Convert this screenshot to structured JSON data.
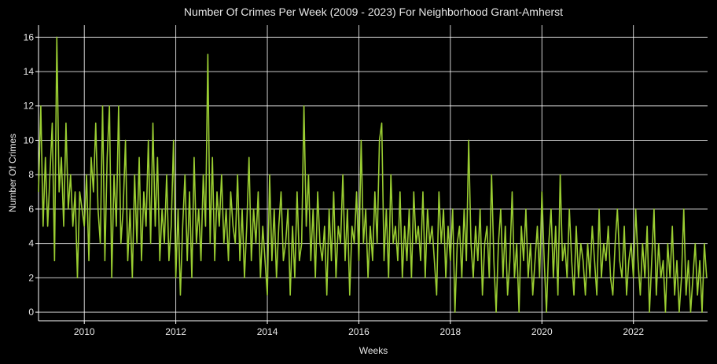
{
  "chart_data": {
    "type": "line",
    "title": "Number Of Crimes Per Week (2009 - 2023) For Neighborhood Grant-Amherst",
    "xlabel": "Weeks",
    "ylabel": "Number Of Crimes",
    "color": "#9acd32",
    "grid": true,
    "xlim": [
      2009,
      2023.62
    ],
    "ylim": [
      -0.5,
      16.7
    ],
    "xticks": [
      2010,
      2012,
      2014,
      2016,
      2018,
      2020,
      2022
    ],
    "yticks": [
      0,
      2,
      4,
      6,
      8,
      10,
      12,
      14,
      16
    ],
    "x": [
      2009,
      2009.05,
      2009.1,
      2009.15,
      2009.2,
      2009.25,
      2009.3,
      2009.35,
      2009.4,
      2009.45,
      2009.5,
      2009.55,
      2009.6,
      2009.65,
      2009.7,
      2009.75,
      2009.8,
      2009.85,
      2009.9,
      2009.95,
      2010,
      2010.05,
      2010.1,
      2010.15,
      2010.2,
      2010.25,
      2010.3,
      2010.35,
      2010.4,
      2010.45,
      2010.5,
      2010.55,
      2010.6,
      2010.65,
      2010.7,
      2010.75,
      2010.8,
      2010.85,
      2010.9,
      2010.95,
      2011,
      2011.05,
      2011.1,
      2011.15,
      2011.2,
      2011.25,
      2011.3,
      2011.35,
      2011.4,
      2011.45,
      2011.5,
      2011.55,
      2011.6,
      2011.65,
      2011.7,
      2011.75,
      2011.8,
      2011.85,
      2011.9,
      2011.95,
      2012,
      2012.05,
      2012.1,
      2012.15,
      2012.2,
      2012.25,
      2012.3,
      2012.35,
      2012.4,
      2012.45,
      2012.5,
      2012.55,
      2012.6,
      2012.65,
      2012.7,
      2012.75,
      2012.8,
      2012.85,
      2012.9,
      2012.95,
      2013,
      2013.05,
      2013.1,
      2013.15,
      2013.2,
      2013.25,
      2013.3,
      2013.35,
      2013.4,
      2013.45,
      2013.5,
      2013.55,
      2013.6,
      2013.65,
      2013.7,
      2013.75,
      2013.8,
      2013.85,
      2013.9,
      2013.95,
      2014,
      2014.05,
      2014.1,
      2014.15,
      2014.2,
      2014.25,
      2014.3,
      2014.35,
      2014.4,
      2014.45,
      2014.5,
      2014.55,
      2014.6,
      2014.65,
      2014.7,
      2014.75,
      2014.8,
      2014.85,
      2014.9,
      2014.95,
      2015,
      2015.05,
      2015.1,
      2015.15,
      2015.2,
      2015.25,
      2015.3,
      2015.35,
      2015.4,
      2015.45,
      2015.5,
      2015.55,
      2015.6,
      2015.65,
      2015.7,
      2015.75,
      2015.8,
      2015.85,
      2015.9,
      2015.95,
      2016,
      2016.05,
      2016.1,
      2016.15,
      2016.2,
      2016.25,
      2016.3,
      2016.35,
      2016.4,
      2016.45,
      2016.5,
      2016.55,
      2016.6,
      2016.65,
      2016.7,
      2016.75,
      2016.8,
      2016.85,
      2016.9,
      2016.95,
      2017,
      2017.05,
      2017.1,
      2017.15,
      2017.2,
      2017.25,
      2017.3,
      2017.35,
      2017.4,
      2017.45,
      2017.5,
      2017.55,
      2017.6,
      2017.65,
      2017.7,
      2017.75,
      2017.8,
      2017.85,
      2017.9,
      2017.95,
      2018,
      2018.05,
      2018.1,
      2018.15,
      2018.2,
      2018.25,
      2018.3,
      2018.35,
      2018.4,
      2018.45,
      2018.5,
      2018.55,
      2018.6,
      2018.65,
      2018.7,
      2018.75,
      2018.8,
      2018.85,
      2018.9,
      2018.95,
      2019,
      2019.05,
      2019.1,
      2019.15,
      2019.2,
      2019.25,
      2019.3,
      2019.35,
      2019.4,
      2019.45,
      2019.5,
      2019.55,
      2019.6,
      2019.65,
      2019.7,
      2019.75,
      2019.8,
      2019.85,
      2019.9,
      2019.95,
      2020,
      2020.05,
      2020.1,
      2020.15,
      2020.2,
      2020.25,
      2020.3,
      2020.35,
      2020.4,
      2020.45,
      2020.5,
      2020.55,
      2020.6,
      2020.65,
      2020.7,
      2020.75,
      2020.8,
      2020.85,
      2020.9,
      2020.95,
      2021,
      2021.05,
      2021.1,
      2021.15,
      2021.2,
      2021.25,
      2021.3,
      2021.35,
      2021.4,
      2021.45,
      2021.5,
      2021.55,
      2021.6,
      2021.65,
      2021.7,
      2021.75,
      2021.8,
      2021.85,
      2021.9,
      2021.95,
      2022,
      2022.05,
      2022.1,
      2022.15,
      2022.2,
      2022.25,
      2022.3,
      2022.35,
      2022.4,
      2022.45,
      2022.5,
      2022.55,
      2022.6,
      2022.65,
      2022.7,
      2022.75,
      2022.8,
      2022.85,
      2022.9,
      2022.95,
      2023,
      2023.05,
      2023.1,
      2023.15,
      2023.2,
      2023.25,
      2023.3,
      2023.35,
      2023.4,
      2023.45,
      2023.5,
      2023.55,
      2023.6
    ],
    "values": [
      7,
      12,
      5,
      9,
      5,
      8,
      11,
      3,
      16,
      7,
      9,
      5,
      11,
      6,
      8,
      5,
      7,
      2,
      7,
      6,
      5,
      8,
      3,
      9,
      7,
      11,
      6,
      4,
      12,
      3,
      9,
      12,
      2,
      8,
      5,
      12,
      4,
      6,
      10,
      3,
      6,
      2,
      8,
      4,
      9,
      3,
      7,
      5,
      10,
      4,
      11,
      5,
      9,
      3,
      6,
      4,
      8,
      3,
      5,
      10,
      2,
      6,
      1,
      5,
      8,
      3,
      7,
      2,
      9,
      4,
      6,
      3,
      8,
      5,
      15,
      4,
      9,
      3,
      7,
      5,
      8,
      4,
      6,
      3,
      7,
      5,
      4,
      8,
      3,
      6,
      2,
      5,
      9,
      3,
      6,
      4,
      7,
      2,
      5,
      3,
      1,
      8,
      3,
      6,
      2,
      5,
      7,
      3,
      4,
      6,
      1,
      5,
      2,
      7,
      3,
      4,
      12,
      5,
      8,
      3,
      6,
      2,
      7,
      4,
      3,
      5,
      1,
      6,
      3,
      7,
      2,
      5,
      4,
      8,
      3,
      6,
      1,
      5,
      4,
      7,
      3,
      10,
      4,
      6,
      2,
      5,
      3,
      7,
      4,
      10,
      11,
      3,
      6,
      2,
      8,
      4,
      5,
      3,
      7,
      2,
      5,
      3,
      6,
      2,
      7,
      4,
      5,
      3,
      7,
      2,
      6,
      4,
      5,
      3,
      1,
      7,
      4,
      6,
      2,
      5,
      3,
      6,
      0,
      4,
      5,
      2,
      6,
      3,
      10,
      4,
      2,
      5,
      3,
      6,
      1,
      4,
      5,
      2,
      8,
      3,
      0,
      4,
      6,
      2,
      5,
      1,
      3,
      7,
      2,
      4,
      0,
      5,
      3,
      6,
      2,
      4,
      1,
      3,
      5,
      2,
      7,
      3,
      0,
      4,
      6,
      2,
      5,
      1,
      8,
      3,
      4,
      2,
      6,
      3,
      1,
      5,
      2,
      4,
      3,
      1,
      4,
      2,
      5,
      3,
      1,
      6,
      2,
      4,
      3,
      5,
      2,
      1,
      4,
      6,
      3,
      2,
      5,
      1,
      3,
      4,
      2,
      6,
      3,
      1,
      4,
      2,
      5,
      0,
      3,
      6,
      1,
      4,
      2,
      3,
      0,
      4,
      2,
      5,
      1,
      3,
      0,
      2,
      6,
      1,
      3,
      0,
      2,
      4,
      1,
      3,
      0,
      4,
      2
    ]
  }
}
